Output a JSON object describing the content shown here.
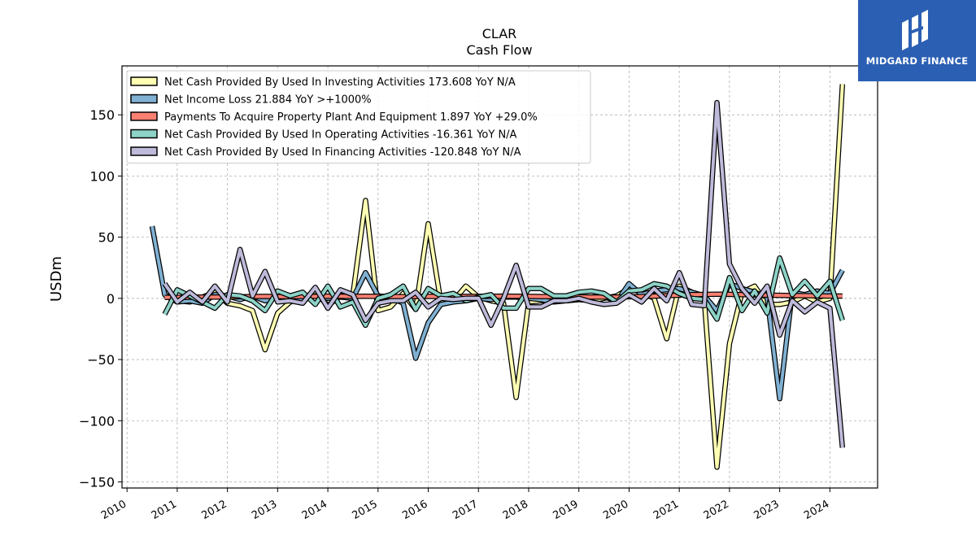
{
  "title": "CLAR",
  "subtitle": "Cash Flow",
  "brand": {
    "name": "MIDGARD FINANCE",
    "color": "#2b5fb3"
  },
  "chart_data": {
    "type": "line",
    "ylabel": "USDm",
    "xlabel": "",
    "xlim": [
      2009.9,
      2024.95
    ],
    "ylim": [
      -155,
      190
    ],
    "grid": true,
    "legend_position": "top-left",
    "yticks": [
      150,
      100,
      50,
      0,
      -50,
      -100,
      -150
    ],
    "ytick_labels": [
      "150",
      "100",
      "50",
      "0",
      "−50",
      "−100",
      "−150"
    ],
    "xticks": [
      2010,
      2011,
      2012,
      2013,
      2014,
      2015,
      2016,
      2017,
      2018,
      2019,
      2020,
      2021,
      2022,
      2023,
      2024
    ],
    "series": [
      {
        "name": "Net Cash Provided By Used In Investing Activities  173.608 YoY N/A",
        "color": "#ffffb3",
        "x": [
          2010.75,
          2011.0,
          2011.25,
          2011.5,
          2011.75,
          2012.0,
          2012.25,
          2012.5,
          2012.75,
          2013.0,
          2013.25,
          2013.5,
          2013.75,
          2014.0,
          2014.25,
          2014.5,
          2014.75,
          2015.0,
          2015.25,
          2015.5,
          2015.75,
          2016.0,
          2016.25,
          2016.5,
          2016.75,
          2017.0,
          2017.25,
          2017.5,
          2017.75,
          2018.0,
          2018.25,
          2018.5,
          2018.75,
          2019.0,
          2019.25,
          2019.5,
          2019.75,
          2020.0,
          2020.25,
          2020.5,
          2020.75,
          2021.0,
          2021.25,
          2021.5,
          2021.75,
          2022.0,
          2022.25,
          2022.5,
          2022.75,
          2023.0,
          2023.25,
          2023.5,
          2023.75,
          2024.0,
          2024.25
        ],
        "y": [
          2,
          -2,
          -3,
          1,
          5,
          -4,
          -6,
          -10,
          -42,
          -12,
          -3,
          0,
          5,
          -6,
          2,
          3,
          80,
          -10,
          -7,
          4,
          -9,
          61,
          -3,
          -2,
          10,
          1,
          -2,
          -4,
          -81,
          -3,
          -2,
          0,
          -2,
          -1,
          -2,
          0,
          2,
          8,
          5,
          0,
          -33,
          10,
          5,
          -2,
          -138,
          -37,
          5,
          10,
          -5,
          -5,
          -3,
          2,
          -3,
          0,
          175
        ]
      },
      {
        "name": "Net Income Loss  21.884 YoY >+1000%",
        "color": "#80b1d3",
        "x": [
          2010.5,
          2010.75,
          2011.0,
          2011.25,
          2011.5,
          2011.75,
          2012.0,
          2012.25,
          2012.5,
          2012.75,
          2013.0,
          2013.25,
          2013.5,
          2013.75,
          2014.0,
          2014.25,
          2014.5,
          2014.75,
          2015.0,
          2015.25,
          2015.5,
          2015.75,
          2016.0,
          2016.25,
          2016.5,
          2016.75,
          2017.0,
          2017.25,
          2017.5,
          2017.75,
          2018.0,
          2018.25,
          2018.5,
          2018.75,
          2019.0,
          2019.25,
          2019.5,
          2019.75,
          2020.0,
          2020.25,
          2020.5,
          2020.75,
          2021.0,
          2021.25,
          2021.5,
          2021.75,
          2022.0,
          2022.25,
          2022.5,
          2022.75,
          2023.0,
          2023.25,
          2023.5,
          2023.75,
          2024.0,
          2024.25
        ],
        "y": [
          59,
          3,
          -3,
          -2,
          -4,
          3,
          2,
          -1,
          2,
          -2,
          1,
          2,
          -1,
          2,
          0,
          1,
          0,
          21,
          2,
          1,
          -4,
          -49,
          -20,
          -5,
          -3,
          -2,
          0,
          -1,
          1,
          1,
          0,
          -1,
          -3,
          -2,
          -1,
          1,
          2,
          -3,
          12,
          3,
          6,
          7,
          8,
          5,
          2,
          -10,
          12,
          8,
          5,
          1,
          -82,
          5,
          3,
          6,
          4,
          23
        ]
      },
      {
        "name": "Payments To Acquire Property Plant And Equipment  1.897 YoY +29.0%",
        "color": "#fb8072",
        "x": [
          2010.75,
          2011.0,
          2011.25,
          2011.5,
          2011.75,
          2012.0,
          2012.25,
          2012.5,
          2012.75,
          2013.0,
          2013.25,
          2013.5,
          2013.75,
          2014.0,
          2014.25,
          2014.5,
          2014.75,
          2015.0,
          2015.25,
          2015.5,
          2015.75,
          2016.0,
          2016.25,
          2016.5,
          2016.75,
          2017.0,
          2017.25,
          2017.5,
          2017.75,
          2018.0,
          2018.25,
          2018.5,
          2018.75,
          2019.0,
          2019.25,
          2019.5,
          2019.75,
          2020.0,
          2020.25,
          2020.5,
          2020.75,
          2021.0,
          2021.25,
          2021.5,
          2021.75,
          2022.0,
          2022.25,
          2022.5,
          2022.75,
          2023.0,
          2023.25,
          2023.5,
          2023.75,
          2024.0,
          2024.25
        ],
        "y": [
          0.8,
          0.8,
          0.9,
          1.0,
          1.0,
          1.2,
          1.3,
          1.5,
          1.6,
          1.5,
          1.4,
          1.6,
          1.6,
          1.8,
          1.7,
          1.6,
          1.7,
          1.6,
          1.5,
          1.4,
          1.5,
          1.6,
          1.5,
          1.5,
          1.6,
          1.6,
          1.7,
          1.8,
          1.7,
          1.6,
          1.5,
          1.5,
          1.4,
          1.2,
          1.0,
          1.0,
          1.1,
          1.3,
          1.5,
          1.8,
          2.2,
          2.6,
          3.0,
          3.2,
          3.4,
          3.3,
          3.0,
          2.8,
          2.6,
          2.5,
          2.3,
          2.2,
          2.0,
          1.9,
          1.9
        ]
      },
      {
        "name": "Net Cash Provided By Used In Operating Activities  -16.361 YoY N/A",
        "color": "#8dd3c7",
        "x": [
          2010.75,
          2011.0,
          2011.25,
          2011.5,
          2011.75,
          2012.0,
          2012.25,
          2012.5,
          2012.75,
          2013.0,
          2013.25,
          2013.5,
          2013.75,
          2014.0,
          2014.25,
          2014.5,
          2014.75,
          2015.0,
          2015.25,
          2015.5,
          2015.75,
          2016.0,
          2016.25,
          2016.5,
          2016.75,
          2017.0,
          2017.25,
          2017.5,
          2017.75,
          2018.0,
          2018.25,
          2018.5,
          2018.75,
          2019.0,
          2019.25,
          2019.5,
          2019.75,
          2020.0,
          2020.25,
          2020.5,
          2020.75,
          2021.0,
          2021.25,
          2021.5,
          2021.75,
          2022.0,
          2022.25,
          2022.5,
          2022.75,
          2023.0,
          2023.25,
          2023.5,
          2023.75,
          2024.0,
          2024.25
        ],
        "y": [
          -13,
          7,
          2,
          -3,
          -8,
          3,
          2,
          -2,
          -10,
          6,
          2,
          5,
          -5,
          10,
          -7,
          -3,
          -22,
          0,
          3,
          10,
          -9,
          8,
          2,
          4,
          -2,
          1,
          3,
          -8,
          -8,
          8,
          8,
          2,
          2,
          5,
          6,
          4,
          -3,
          6,
          7,
          12,
          10,
          4,
          0,
          -1,
          -17,
          17,
          -10,
          6,
          -12,
          33,
          3,
          14,
          2,
          14,
          -18
        ]
      },
      {
        "name": "Net Cash Provided By Used In Financing Activities  -120.848 YoY N/A",
        "color": "#bebada",
        "x": [
          2010.75,
          2011.0,
          2011.25,
          2011.5,
          2011.75,
          2012.0,
          2012.25,
          2012.5,
          2012.75,
          2013.0,
          2013.25,
          2013.5,
          2013.75,
          2014.0,
          2014.25,
          2014.5,
          2014.75,
          2015.0,
          2015.25,
          2015.5,
          2015.75,
          2016.0,
          2016.25,
          2016.5,
          2016.75,
          2017.0,
          2017.25,
          2017.5,
          2017.75,
          2018.0,
          2018.25,
          2018.5,
          2018.75,
          2019.0,
          2019.25,
          2019.5,
          2019.75,
          2020.0,
          2020.25,
          2020.5,
          2020.75,
          2021.0,
          2021.25,
          2021.5,
          2021.75,
          2022.0,
          2022.25,
          2022.5,
          2022.75,
          2023.0,
          2023.25,
          2023.5,
          2023.75,
          2024.0,
          2024.25
        ],
        "y": [
          12,
          -3,
          5,
          -3,
          10,
          -3,
          40,
          2,
          22,
          -3,
          -2,
          -4,
          9,
          -8,
          7,
          3,
          -18,
          -4,
          -2,
          -2,
          5,
          -7,
          0,
          -1,
          0,
          0,
          -22,
          0,
          27,
          -7,
          -7,
          -2,
          -2,
          0,
          -3,
          -5,
          -4,
          3,
          -3,
          8,
          -2,
          21,
          -5,
          -6,
          160,
          28,
          8,
          -4,
          10,
          -30,
          -2,
          -11,
          -3,
          -8,
          -122
        ]
      }
    ]
  }
}
